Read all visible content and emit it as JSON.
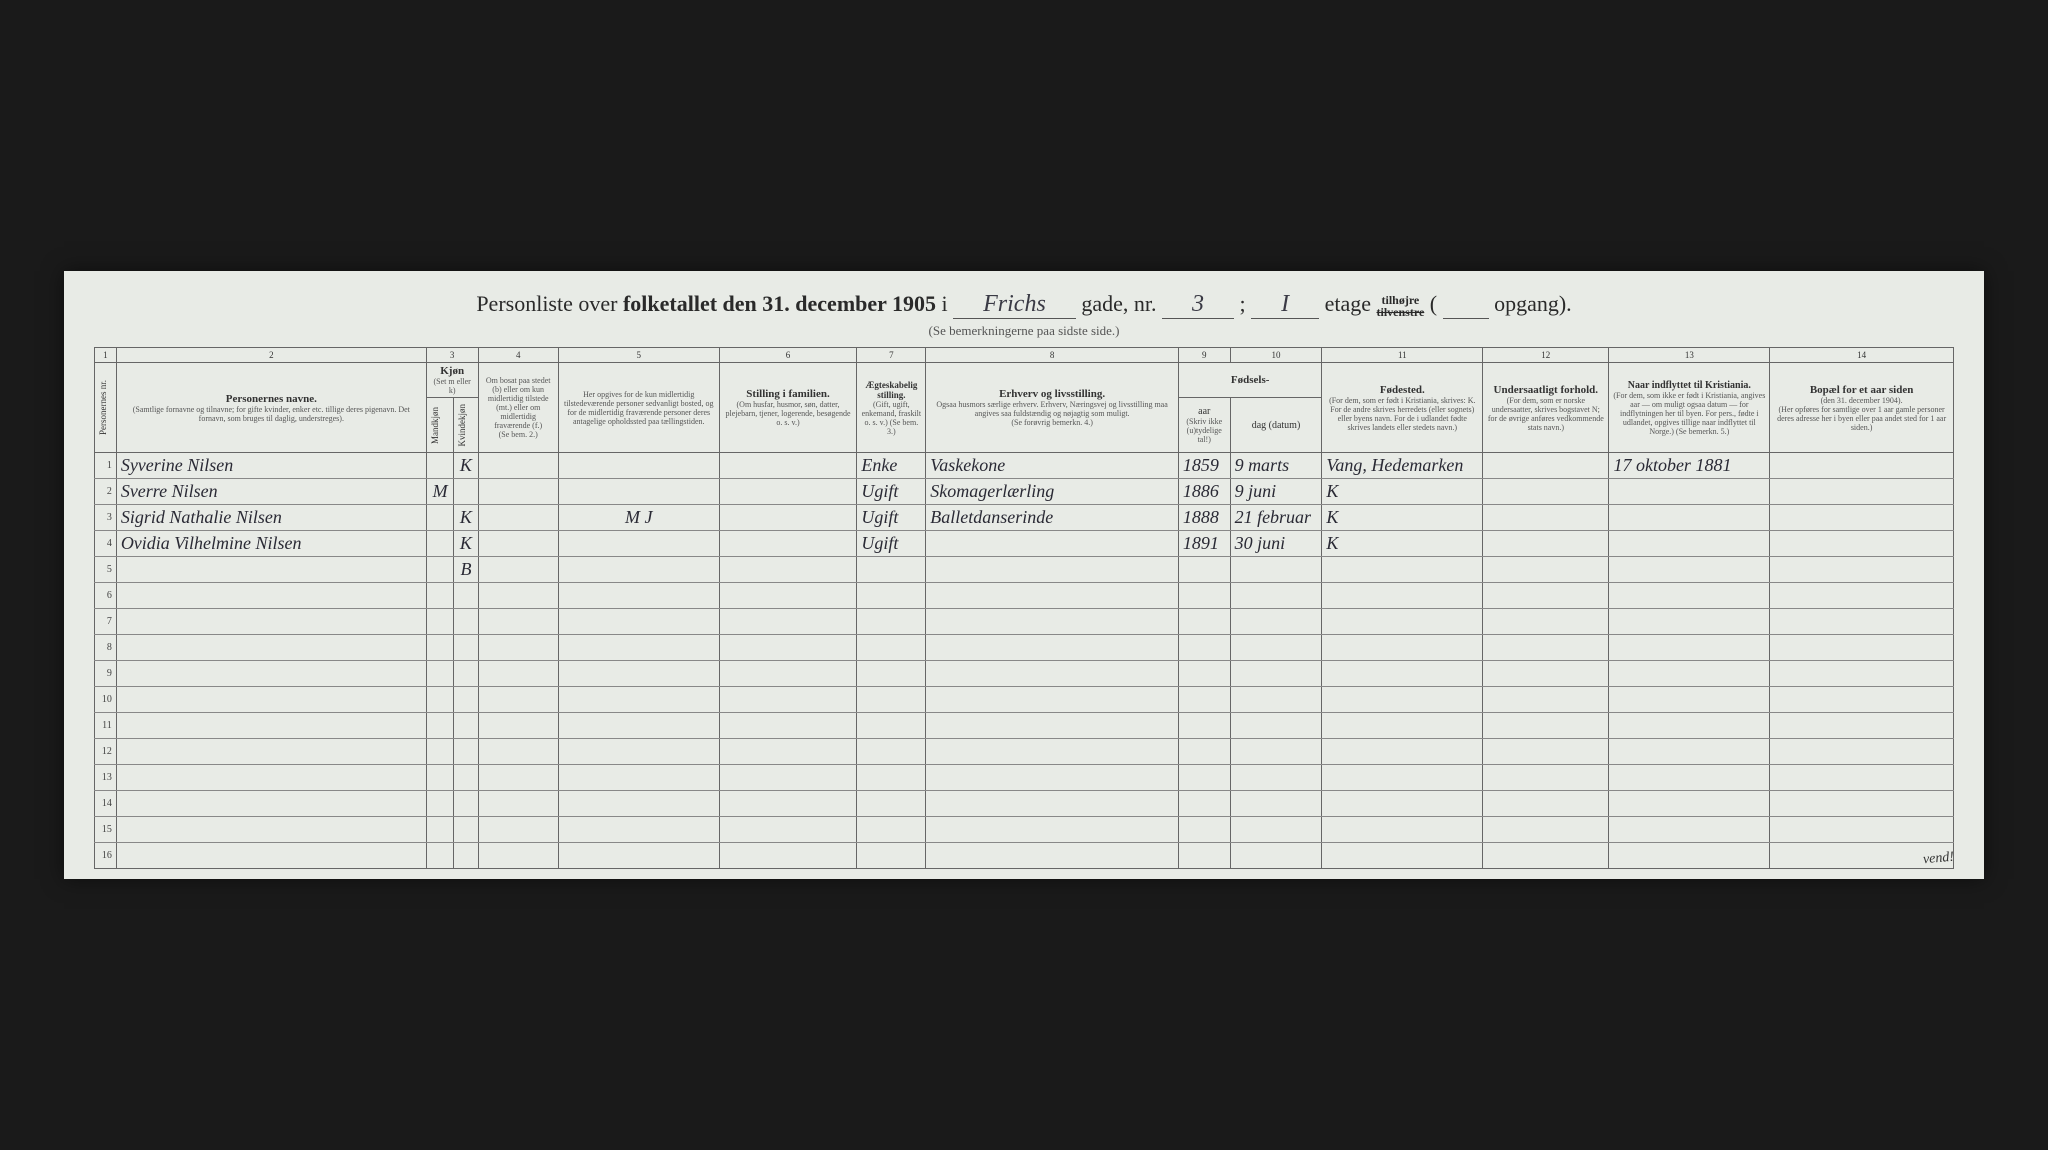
{
  "header": {
    "title_pre": "Personliste over",
    "title_bold": "folketallet den 31. december 1905",
    "title_i": "i",
    "street_hw": "Frichs",
    "gade": "gade, nr.",
    "nr_hw": "3",
    "semicolon": ";",
    "etage_hw": "I",
    "etage": "etage",
    "tilhoire": "tilhøjre",
    "tilvenstre": "tilvenstre",
    "opgang": "opgang).",
    "subtitle": "(Se bemerkningerne paa sidste side.)"
  },
  "column_numbers": [
    "1",
    "2",
    "3",
    "4",
    "5",
    "6",
    "7",
    "8",
    "9",
    "10",
    "11",
    "12",
    "13",
    "14"
  ],
  "headers": {
    "c1": "Personernes nr.",
    "c2_main": "Personernes navne.",
    "c2_sub": "(Samtlige fornavne og tilnavne; for gifte kvinder, enker etc. tillige deres pigenavn. Det fornavn, som bruges til daglig, understreges).",
    "c3_main": "Kjøn",
    "c3_sub": "(Set m eller k)",
    "c3a": "Mandkjøn",
    "c3b": "Kvindekjøn",
    "c4_main": "Om bosat paa stedet (b) eller om kun midlertidig tilstede (mt.) eller om midlertidig fraværende (f.)",
    "c4_sub": "(Se bem. 2.)",
    "c5_main": "Her opgives for de kun midlertidig tilstedeværende personer sedvanligt bosted, og for de midlertidig fraværende personer deres antagelige opholdssted paa tællingstiden.",
    "c6_main": "Stilling i familien.",
    "c6_sub": "(Om husfar, husmor, søn, datter, plejebarn, tjener, logerende, besøgende o. s. v.)",
    "c7_main": "Ægteskabelig stilling.",
    "c7_sub": "(Gift, ugift, enkemand, fraskilt o. s. v.) (Se bem. 3.)",
    "c8_main": "Erhverv og livsstilling.",
    "c8_sub": "Ogsaa husmors særlige erhverv. Erhverv, Næringsvej og livsstilling maa angives saa fuldstændig og nøjagtig som muligt.",
    "c8_sub2": "(Se forøvrig bemerkn. 4.)",
    "c9_10_main": "Fødsels-",
    "c9": "aar",
    "c10": "dag (datum)",
    "c9_10_sub": "(Skriv ikke (u)tydelige tal!)",
    "c11_main": "Fødested.",
    "c11_sub": "(For dem, som er født i Kristiania, skrives: K. For de andre skrives herredets (eller sognets) eller byens navn. For de i udlandet fødte skrives landets eller stedets navn.)",
    "c12_main": "Undersaatligt forhold.",
    "c12_sub": "(For dem, som er norske undersaatter, skrives bogstavet N; for de øvrige anføres vedkommende stats navn.)",
    "c13_main": "Naar indflyttet til Kristiania.",
    "c13_sub": "(For dem, som ikke er født i Kristiania, angives aar — om muligt ogsaa datum — for indflytningen her til byen. For pers., fødte i udlandet, opgives tillige naar indflyttet til Norge.) (Se bemerkn. 5.)",
    "c14_main": "Bopæl for et aar siden",
    "c14_sub": "(den 31. december 1904).",
    "c14_sub2": "(Her opføres for samtlige over 1 aar gamle personer deres adresse her i byen eller paa andet sted for 1 aar siden.)"
  },
  "rows": [
    {
      "nr": "1",
      "name": "Syverine Nilsen",
      "m": "",
      "k": "K",
      "c4": "",
      "c5": "",
      "c6": "",
      "c7": "Enke",
      "c8": "Vaskekone",
      "c9": "1859",
      "c10": "9 marts",
      "c11": "Vang, Hedemarken",
      "c12": "",
      "c13": "17 oktober 1881",
      "c14": ""
    },
    {
      "nr": "2",
      "name": "Sverre Nilsen",
      "m": "M",
      "k": "",
      "c4": "",
      "c5": "",
      "c6": "",
      "c7": "Ugift",
      "c8": "Skomagerlærling",
      "c9": "1886",
      "c10": "9 juni",
      "c11": "K",
      "c12": "",
      "c13": "",
      "c14": ""
    },
    {
      "nr": "3",
      "name": "Sigrid Nathalie Nilsen",
      "m": "",
      "k": "K",
      "c4": "",
      "c5": "M J",
      "c6": "",
      "c7": "Ugift",
      "c8": "Balletdanserinde",
      "c9": "1888",
      "c10": "21 februar",
      "c11": "K",
      "c12": "",
      "c13": "",
      "c14": ""
    },
    {
      "nr": "4",
      "name": "Ovidia Vilhelmine Nilsen",
      "m": "",
      "k": "K",
      "c4": "",
      "c5": "",
      "c6": "",
      "c7": "Ugift",
      "c8": "",
      "c9": "1891",
      "c10": "30 juni",
      "c11": "K",
      "c12": "",
      "c13": "",
      "c14": ""
    },
    {
      "nr": "5",
      "name": "",
      "m": "",
      "k": "B",
      "c4": "",
      "c5": "",
      "c6": "",
      "c7": "",
      "c8": "",
      "c9": "",
      "c10": "",
      "c11": "",
      "c12": "",
      "c13": "",
      "c14": ""
    },
    {
      "nr": "6",
      "name": "",
      "m": "",
      "k": "",
      "c4": "",
      "c5": "",
      "c6": "",
      "c7": "",
      "c8": "",
      "c9": "",
      "c10": "",
      "c11": "",
      "c12": "",
      "c13": "",
      "c14": ""
    },
    {
      "nr": "7",
      "name": "",
      "m": "",
      "k": "",
      "c4": "",
      "c5": "",
      "c6": "",
      "c7": "",
      "c8": "",
      "c9": "",
      "c10": "",
      "c11": "",
      "c12": "",
      "c13": "",
      "c14": ""
    },
    {
      "nr": "8",
      "name": "",
      "m": "",
      "k": "",
      "c4": "",
      "c5": "",
      "c6": "",
      "c7": "",
      "c8": "",
      "c9": "",
      "c10": "",
      "c11": "",
      "c12": "",
      "c13": "",
      "c14": ""
    },
    {
      "nr": "9",
      "name": "",
      "m": "",
      "k": "",
      "c4": "",
      "c5": "",
      "c6": "",
      "c7": "",
      "c8": "",
      "c9": "",
      "c10": "",
      "c11": "",
      "c12": "",
      "c13": "",
      "c14": ""
    },
    {
      "nr": "10",
      "name": "",
      "m": "",
      "k": "",
      "c4": "",
      "c5": "",
      "c6": "",
      "c7": "",
      "c8": "",
      "c9": "",
      "c10": "",
      "c11": "",
      "c12": "",
      "c13": "",
      "c14": ""
    },
    {
      "nr": "11",
      "name": "",
      "m": "",
      "k": "",
      "c4": "",
      "c5": "",
      "c6": "",
      "c7": "",
      "c8": "",
      "c9": "",
      "c10": "",
      "c11": "",
      "c12": "",
      "c13": "",
      "c14": ""
    },
    {
      "nr": "12",
      "name": "",
      "m": "",
      "k": "",
      "c4": "",
      "c5": "",
      "c6": "",
      "c7": "",
      "c8": "",
      "c9": "",
      "c10": "",
      "c11": "",
      "c12": "",
      "c13": "",
      "c14": ""
    },
    {
      "nr": "13",
      "name": "",
      "m": "",
      "k": "",
      "c4": "",
      "c5": "",
      "c6": "",
      "c7": "",
      "c8": "",
      "c9": "",
      "c10": "",
      "c11": "",
      "c12": "",
      "c13": "",
      "c14": ""
    },
    {
      "nr": "14",
      "name": "",
      "m": "",
      "k": "",
      "c4": "",
      "c5": "",
      "c6": "",
      "c7": "",
      "c8": "",
      "c9": "",
      "c10": "",
      "c11": "",
      "c12": "",
      "c13": "",
      "c14": ""
    },
    {
      "nr": "15",
      "name": "",
      "m": "",
      "k": "",
      "c4": "",
      "c5": "",
      "c6": "",
      "c7": "",
      "c8": "",
      "c9": "",
      "c10": "",
      "c11": "",
      "c12": "",
      "c13": "",
      "c14": ""
    },
    {
      "nr": "16",
      "name": "",
      "m": "",
      "k": "",
      "c4": "",
      "c5": "",
      "c6": "",
      "c7": "",
      "c8": "",
      "c9": "",
      "c10": "",
      "c11": "",
      "c12": "",
      "c13": "",
      "c14": ""
    }
  ],
  "vend": "vend!"
}
